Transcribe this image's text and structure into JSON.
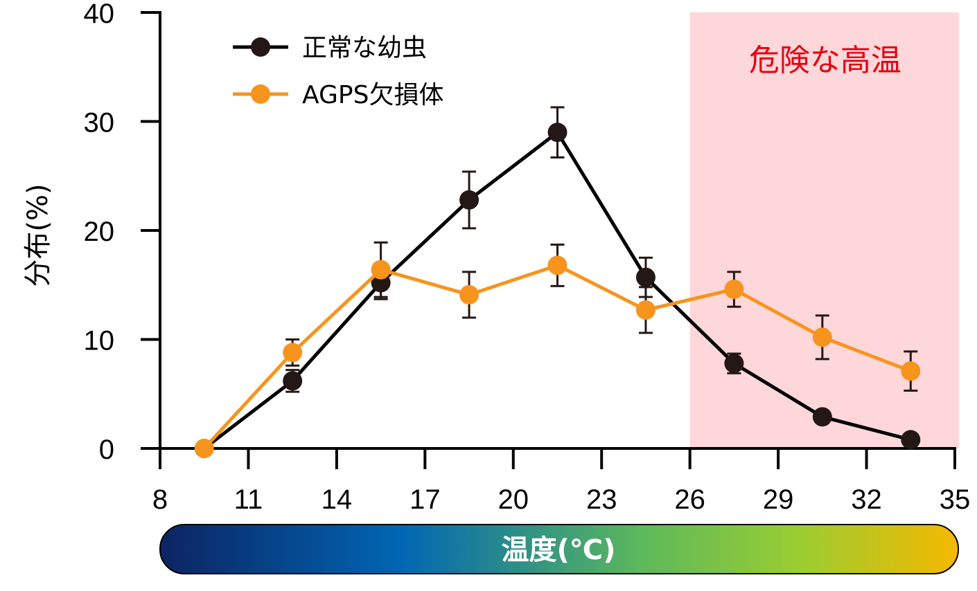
{
  "chart_data": {
    "type": "line",
    "xlabel": "温度(℃)",
    "ylabel": "分布(%)",
    "x_ticks": [
      8,
      11,
      14,
      17,
      20,
      23,
      26,
      29,
      32,
      35
    ],
    "y_ticks": [
      0,
      10,
      20,
      30,
      40
    ],
    "xlim": [
      8,
      35
    ],
    "ylim": [
      0,
      40
    ],
    "x": [
      9.5,
      12.5,
      15.5,
      18.5,
      21.5,
      24.5,
      27.5,
      30.5,
      33.5
    ],
    "series": [
      {
        "name": "正常な幼虫",
        "color": "#000000",
        "marker_color": "#231815",
        "values": [
          0,
          6.2,
          15.2,
          22.8,
          29.0,
          15.7,
          7.8,
          2.9,
          0.8
        ],
        "errors": [
          0,
          1.0,
          1.5,
          2.6,
          2.3,
          1.8,
          0.9,
          0.5,
          0.3
        ]
      },
      {
        "name": "AGPS欠損体",
        "color": "#f7941d",
        "marker_color": "#f7941d",
        "values": [
          0,
          8.8,
          16.4,
          14.1,
          16.8,
          12.7,
          14.6,
          10.2,
          7.1
        ],
        "errors": [
          0,
          1.2,
          2.5,
          2.1,
          1.9,
          2.1,
          1.6,
          2.0,
          1.8
        ]
      }
    ],
    "highlight_region": {
      "x_range": [
        26,
        35
      ],
      "label": "危険な高温",
      "color": "#fdd7d9",
      "label_color": "#e60012"
    },
    "gradient_colors": [
      "#0d2462",
      "#0066b3",
      "#5cb85c",
      "#9acd32",
      "#f5b800"
    ],
    "grid": false,
    "legend_position": "top-left"
  }
}
